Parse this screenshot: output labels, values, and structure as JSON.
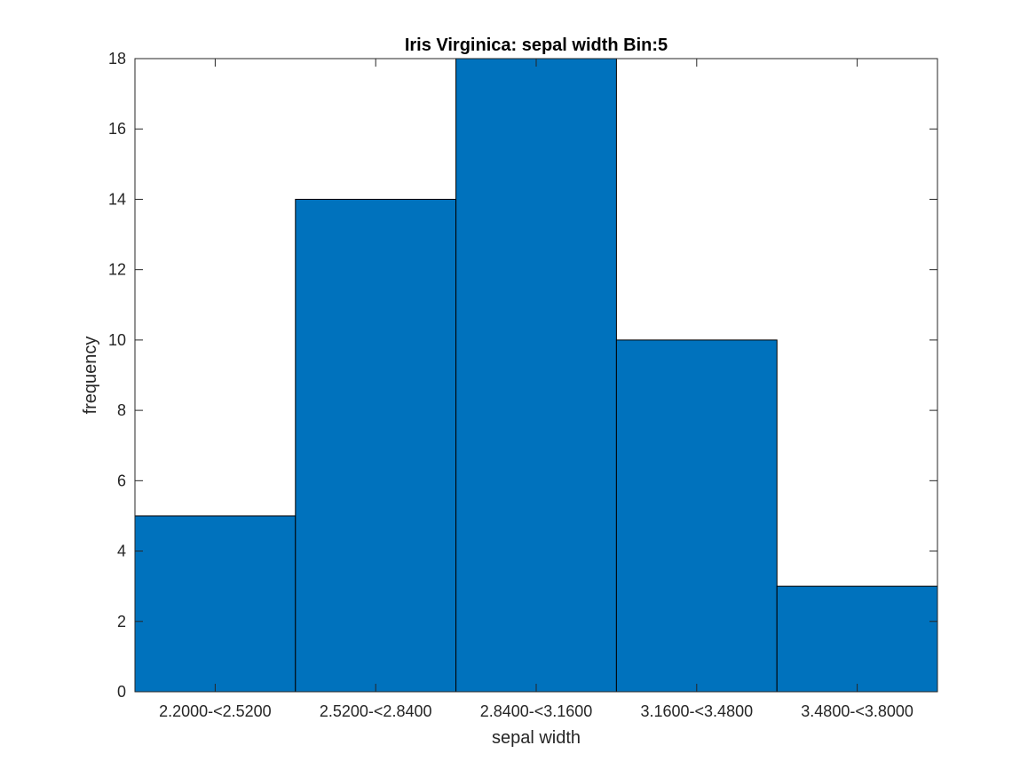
{
  "chart_data": {
    "type": "bar",
    "title": "Iris Virginica: sepal width Bin:5",
    "xlabel": "sepal width",
    "ylabel": "frequency",
    "categories": [
      "2.2000-<2.5200",
      "2.5200-<2.8400",
      "2.8400-<3.1600",
      "3.1600-<3.4800",
      "3.4800-<3.8000"
    ],
    "values": [
      5,
      14,
      18,
      10,
      3
    ],
    "ylim": [
      0,
      18
    ],
    "yticks": [
      "0",
      "2",
      "4",
      "6",
      "8",
      "10",
      "12",
      "14",
      "16",
      "18"
    ],
    "grid": false,
    "legend": "none",
    "bar_color": "#0072BD",
    "edge_color": "#000000",
    "axis_color": "#262626"
  }
}
